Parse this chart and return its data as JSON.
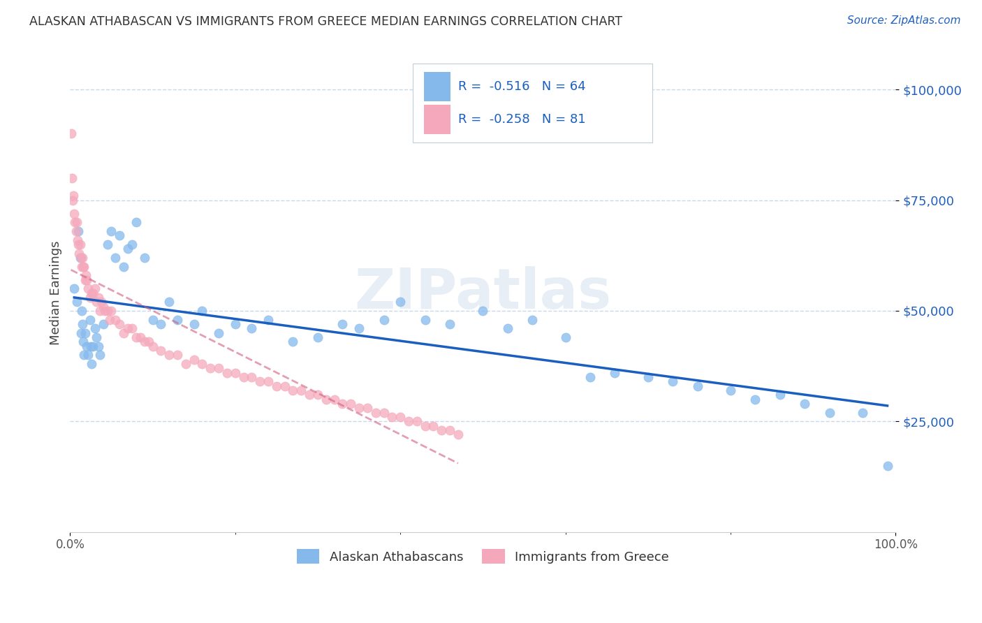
{
  "title": "ALASKAN ATHABASCAN VS IMMIGRANTS FROM GREECE MEDIAN EARNINGS CORRELATION CHART",
  "source": "Source: ZipAtlas.com",
  "ylabel": "Median Earnings",
  "watermark": "ZIPatlas",
  "legend_r1": "R = -0.516",
  "legend_n1": "N = 64",
  "legend_r2": "R = -0.258",
  "legend_n2": "N = 81",
  "series1_label": "Alaskan Athabascans",
  "series2_label": "Immigrants from Greece",
  "color1": "#85b9ec",
  "color2": "#f5a8bc",
  "trendline1_color": "#1a5fbf",
  "trendline2_color": "#d06080",
  "yaxis_color": "#2060c0",
  "background_color": "#ffffff",
  "grid_color": "#c8d8ec",
  "yticks": [
    25000,
    50000,
    75000,
    100000
  ],
  "ytick_labels": [
    "$25,000",
    "$50,000",
    "$75,000",
    "$100,000"
  ],
  "xlim": [
    0.0,
    1.0
  ],
  "ylim": [
    0,
    108000
  ],
  "series1_x": [
    0.005,
    0.008,
    0.01,
    0.012,
    0.013,
    0.014,
    0.015,
    0.016,
    0.017,
    0.018,
    0.02,
    0.022,
    0.024,
    0.025,
    0.026,
    0.028,
    0.03,
    0.032,
    0.034,
    0.036,
    0.04,
    0.045,
    0.05,
    0.055,
    0.06,
    0.065,
    0.07,
    0.075,
    0.08,
    0.09,
    0.1,
    0.11,
    0.12,
    0.13,
    0.15,
    0.16,
    0.18,
    0.2,
    0.22,
    0.24,
    0.27,
    0.3,
    0.33,
    0.35,
    0.38,
    0.4,
    0.43,
    0.46,
    0.5,
    0.53,
    0.56,
    0.6,
    0.63,
    0.66,
    0.7,
    0.73,
    0.76,
    0.8,
    0.83,
    0.86,
    0.89,
    0.92,
    0.96,
    0.99
  ],
  "series1_y": [
    55000,
    52000,
    68000,
    62000,
    45000,
    50000,
    47000,
    43000,
    40000,
    45000,
    42000,
    40000,
    48000,
    42000,
    38000,
    42000,
    46000,
    44000,
    42000,
    40000,
    47000,
    65000,
    68000,
    62000,
    67000,
    60000,
    64000,
    65000,
    70000,
    62000,
    48000,
    47000,
    52000,
    48000,
    47000,
    50000,
    45000,
    47000,
    46000,
    48000,
    43000,
    44000,
    47000,
    46000,
    48000,
    52000,
    48000,
    47000,
    50000,
    46000,
    48000,
    44000,
    35000,
    36000,
    35000,
    34000,
    33000,
    32000,
    30000,
    31000,
    29000,
    27000,
    27000,
    15000
  ],
  "series2_x": [
    0.001,
    0.002,
    0.003,
    0.004,
    0.005,
    0.006,
    0.007,
    0.008,
    0.009,
    0.01,
    0.011,
    0.012,
    0.013,
    0.014,
    0.015,
    0.016,
    0.017,
    0.018,
    0.019,
    0.02,
    0.022,
    0.024,
    0.026,
    0.028,
    0.03,
    0.032,
    0.034,
    0.036,
    0.038,
    0.04,
    0.042,
    0.045,
    0.048,
    0.05,
    0.055,
    0.06,
    0.065,
    0.07,
    0.075,
    0.08,
    0.085,
    0.09,
    0.095,
    0.1,
    0.11,
    0.12,
    0.13,
    0.14,
    0.15,
    0.16,
    0.17,
    0.18,
    0.19,
    0.2,
    0.21,
    0.22,
    0.23,
    0.24,
    0.25,
    0.26,
    0.27,
    0.28,
    0.29,
    0.3,
    0.31,
    0.32,
    0.33,
    0.34,
    0.35,
    0.36,
    0.37,
    0.38,
    0.39,
    0.4,
    0.41,
    0.42,
    0.43,
    0.44,
    0.45,
    0.46,
    0.47
  ],
  "series2_y": [
    90000,
    80000,
    75000,
    76000,
    72000,
    70000,
    68000,
    70000,
    66000,
    65000,
    63000,
    65000,
    62000,
    60000,
    62000,
    60000,
    60000,
    57000,
    58000,
    57000,
    55000,
    53000,
    54000,
    54000,
    55000,
    52000,
    53000,
    50000,
    52000,
    51000,
    50000,
    50000,
    48000,
    50000,
    48000,
    47000,
    45000,
    46000,
    46000,
    44000,
    44000,
    43000,
    43000,
    42000,
    41000,
    40000,
    40000,
    38000,
    39000,
    38000,
    37000,
    37000,
    36000,
    36000,
    35000,
    35000,
    34000,
    34000,
    33000,
    33000,
    32000,
    32000,
    31000,
    31000,
    30000,
    30000,
    29000,
    29000,
    28000,
    28000,
    27000,
    27000,
    26000,
    26000,
    25000,
    25000,
    24000,
    24000,
    23000,
    23000,
    22000
  ]
}
